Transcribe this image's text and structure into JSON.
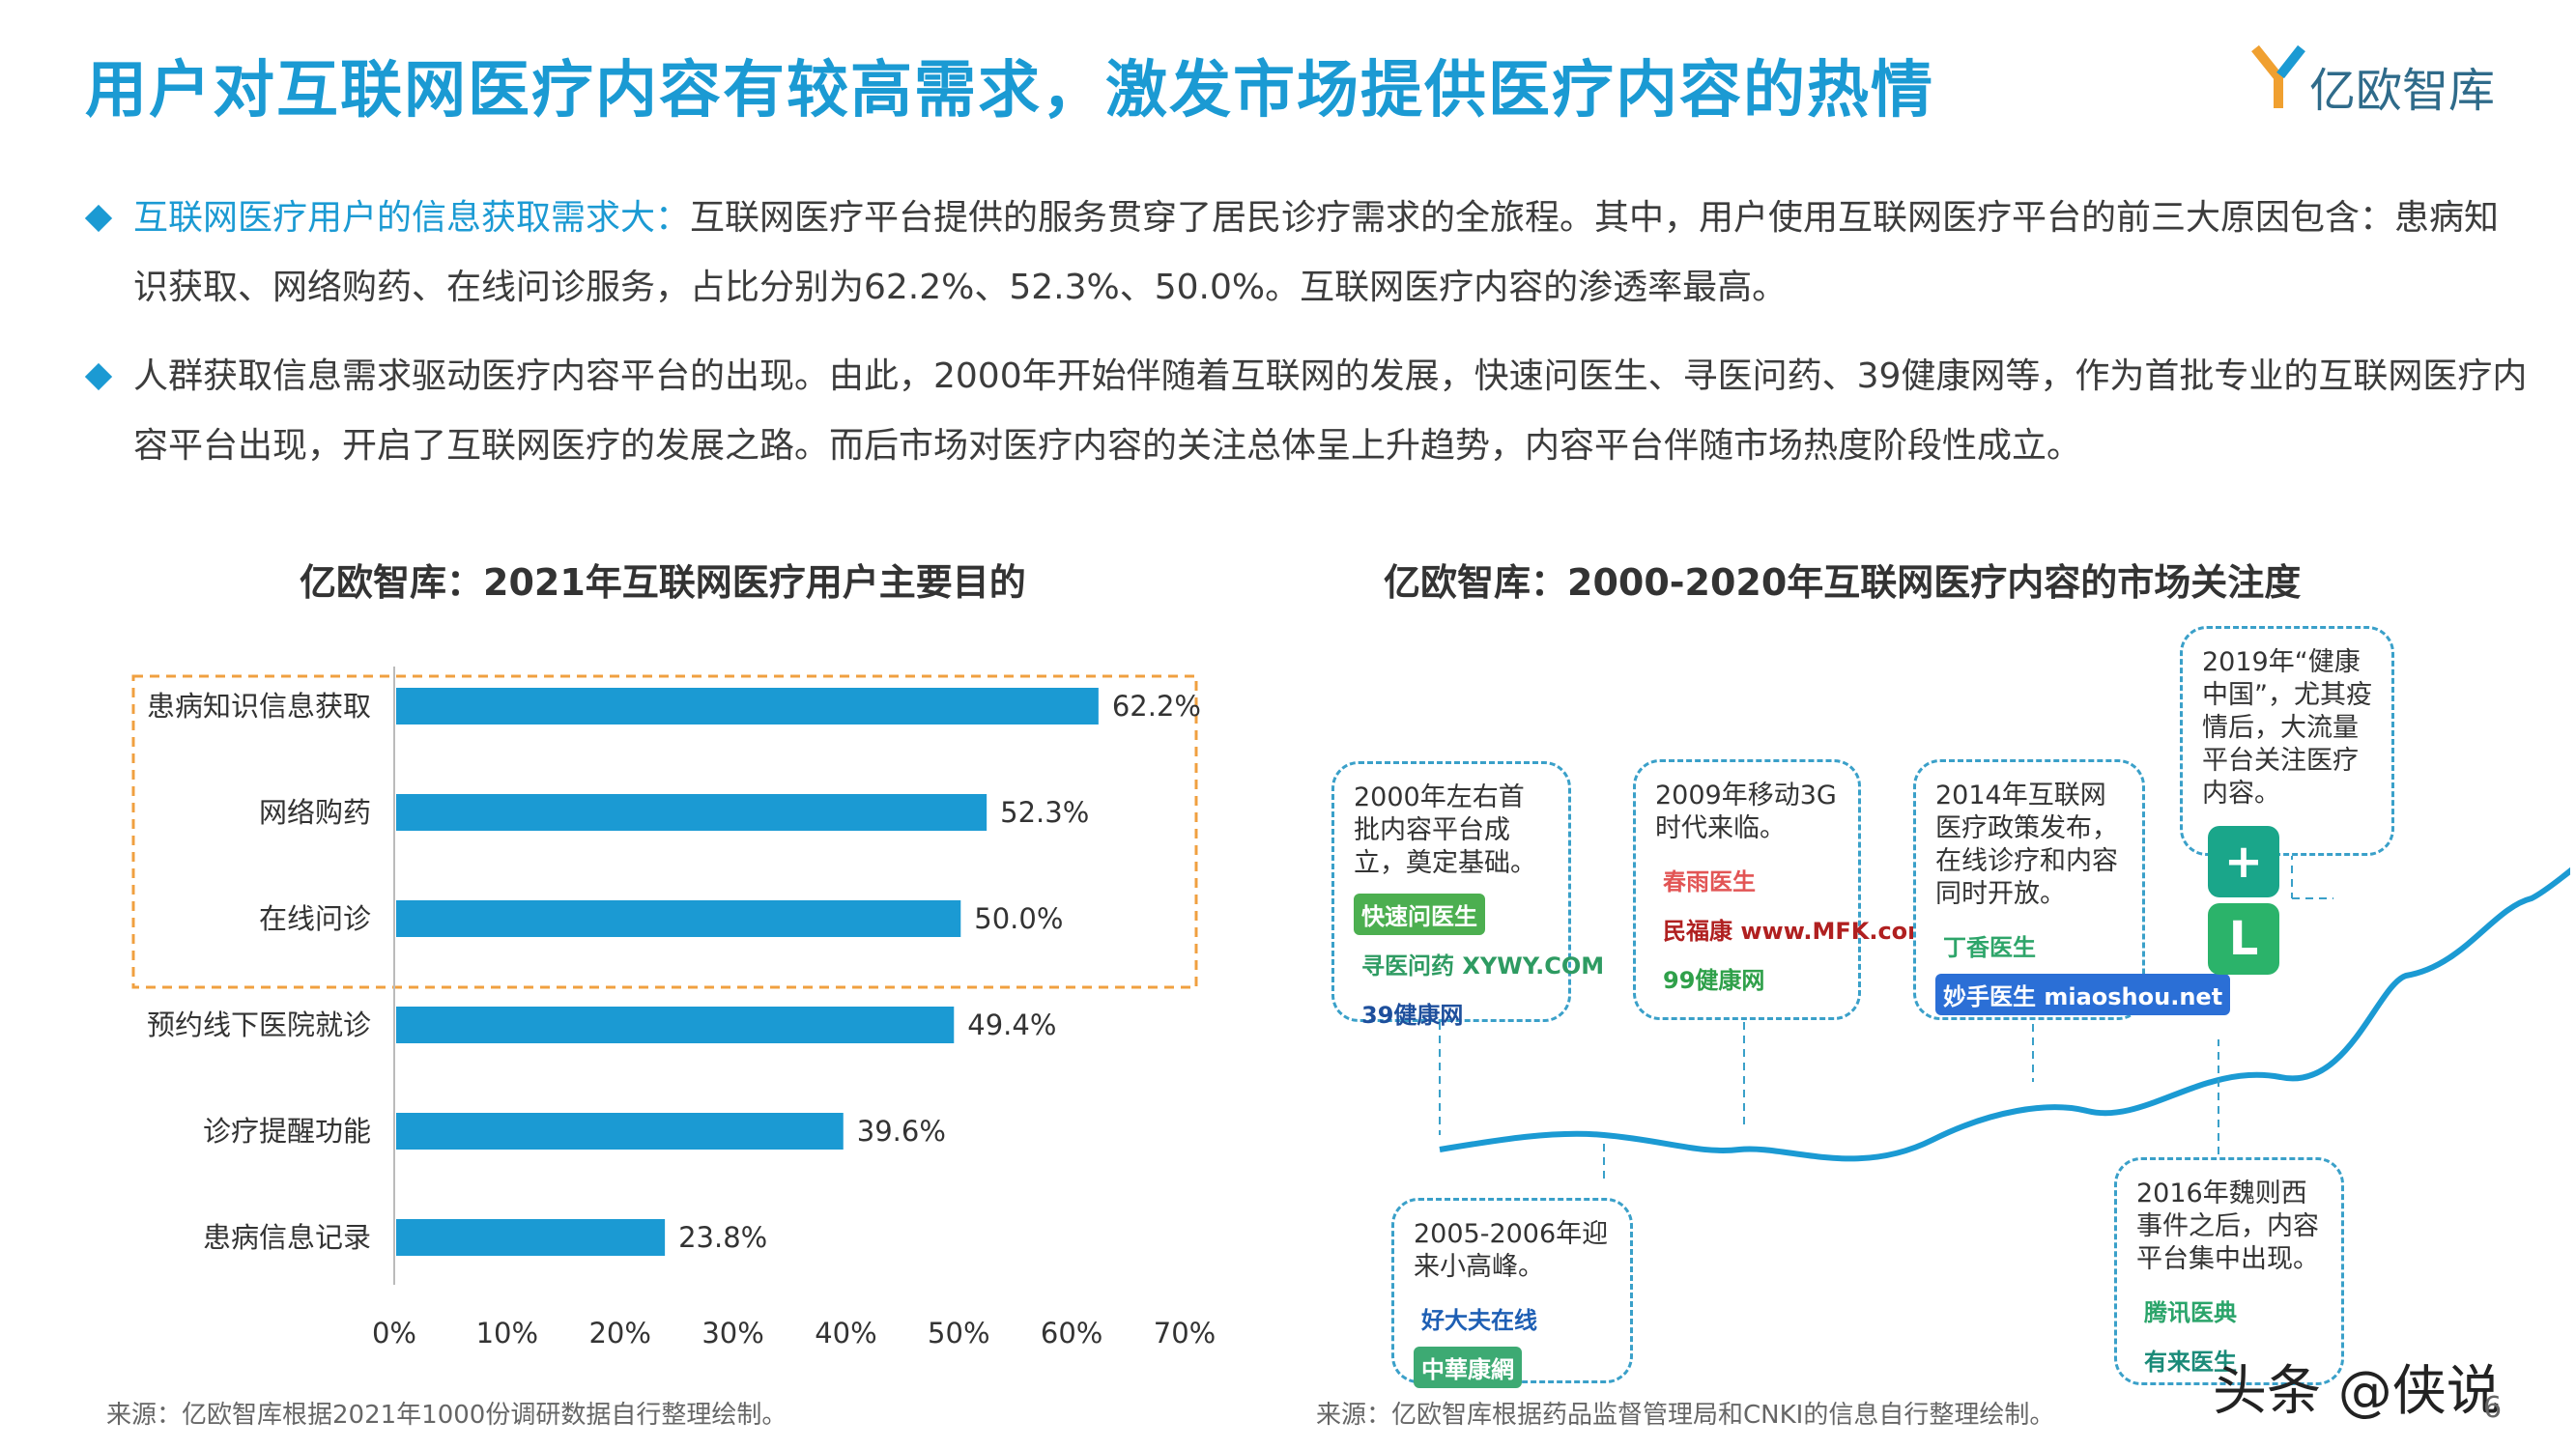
{
  "header": {
    "title": "用户对互联网医疗内容有较高需求，激发市场提供医疗内容的热情",
    "logo_text": "亿欧智库"
  },
  "bullets": [
    {
      "highlight": "互联网医疗用户的信息获取需求大：",
      "text": "互联网医疗平台提供的服务贯穿了居民诊疗需求的全旅程。其中，用户使用互联网医疗平台的前三大原因包含：患病知识获取、网络购药、在线问诊服务，占比分别为62.2%、52.3%、50.0%。互联网医疗内容的渗透率最高。"
    },
    {
      "highlight": "",
      "text": "人群获取信息需求驱动医疗内容平台的出现。由此，2000年开始伴随着互联网的发展，快速问医生、寻医问药、39健康网等，作为首批专业的互联网医疗内容平台出现，开启了互联网医疗的发展之路。而后市场对医疗内容的关注总体呈上升趋势，内容平台伴随市场热度阶段性成立。"
    }
  ],
  "left_chart": {
    "title": "亿欧智库：2021年互联网医疗用户主要目的",
    "source": "来源：亿欧智库根据2021年1000份调研数据自行整理绘制。"
  },
  "right_chart": {
    "title": "亿欧智库：2000-2020年互联网医疗内容的市场关注度",
    "source": "来源：亿欧智库根据药品监督管理局和CNKI的信息自行整理绘制。",
    "callouts": [
      {
        "id": "c2000",
        "text": "2000年左右首批内容平台成立，奠定基础。",
        "brands": [
          "快速问医生",
          "寻医问药 XYWY.COM",
          "39健康网"
        ]
      },
      {
        "id": "c2005",
        "text": "2005-2006年迎来小高峰。",
        "brands": [
          "好大夫在线",
          "中華康網"
        ]
      },
      {
        "id": "c2009",
        "text": "2009年移动3G时代来临。",
        "brands": [
          "春雨医生",
          "民福康 www.MFK.com",
          "99健康网"
        ]
      },
      {
        "id": "c2014",
        "text": "2014年互联网医疗政策发布，在线诊疗和内容同时开放。",
        "brands": [
          "丁香医生",
          "妙手医生 miaoshou.net"
        ]
      },
      {
        "id": "c2016",
        "text": "2016年魏则西事件之后，内容平台集中出现。",
        "brands": [
          "腾讯医典",
          "有来医生"
        ]
      },
      {
        "id": "c2019",
        "text": "2019年“健康中国”，尤其疫情后，大流量平台关注医疗内容。",
        "brands": []
      }
    ]
  },
  "chart_data": {
    "type": "bar",
    "orientation": "horizontal",
    "categories": [
      "患病知识信息获取",
      "网络购药",
      "在线问诊",
      "预约线下医院就诊",
      "诊疗提醒功能",
      "患病信息记录"
    ],
    "values": [
      62.2,
      52.3,
      50.0,
      49.4,
      39.6,
      23.8
    ],
    "value_labels": [
      "62.2%",
      "52.3%",
      "50.0%",
      "49.4%",
      "39.6%",
      "23.8%"
    ],
    "xlim": [
      0,
      70
    ],
    "xticks": [
      "0%",
      "10%",
      "20%",
      "30%",
      "40%",
      "50%",
      "60%",
      "70%"
    ],
    "bar_color": "#1b9ad3",
    "highlight_top_n": 3,
    "highlight_color": "#f0a040"
  },
  "watermark": "头条 @侠说",
  "page_number": "6"
}
